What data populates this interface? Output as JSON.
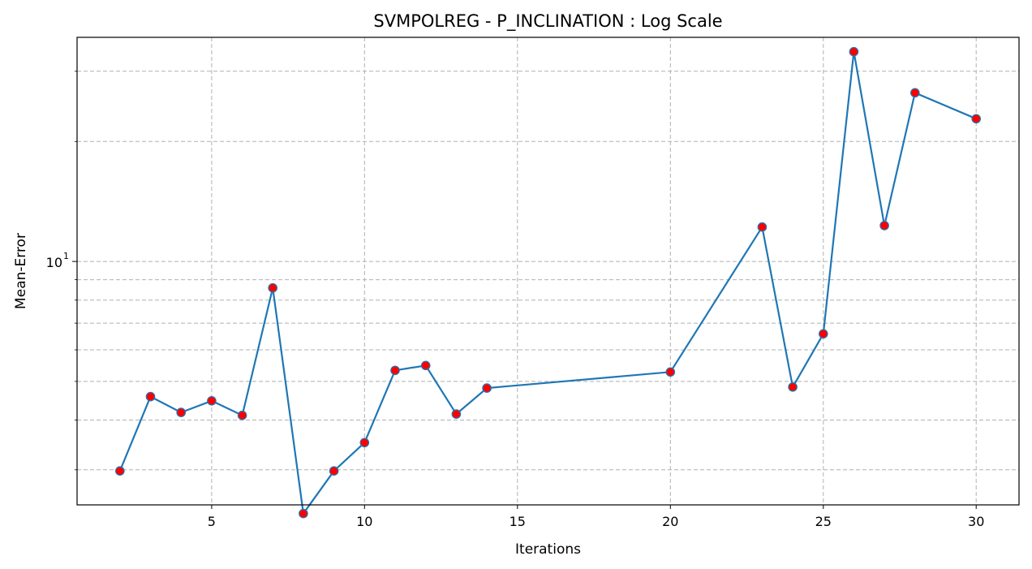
{
  "chart_data": {
    "type": "line",
    "title": "SVMPOLREG - P_INCLINATION : Log Scale",
    "xlabel": "Iterations",
    "ylabel": "Mean-Error",
    "yscale": "log",
    "xlim": [
      0.6,
      31.4
    ],
    "ylim": [
      2.45,
      36.5
    ],
    "grid": true,
    "x_ticks": [
      5,
      10,
      15,
      20,
      25,
      30
    ],
    "y_major_ticks": [
      {
        "value": 10,
        "base": "10",
        "exp": "1"
      }
    ],
    "y_minor_ticks": [
      3,
      4,
      5,
      6,
      7,
      8,
      9,
      20,
      30
    ],
    "line_color": "#1f77b4",
    "marker_color": "#ff0000",
    "series": [
      {
        "x": [
          2,
          3,
          4,
          5,
          6,
          7,
          8,
          9,
          10,
          11,
          12,
          13,
          14,
          20,
          23,
          24,
          25,
          26,
          27,
          28,
          30
        ],
        "y": [
          2.98,
          4.58,
          4.18,
          4.47,
          4.11,
          8.58,
          2.33,
          2.98,
          3.51,
          5.33,
          5.48,
          4.14,
          4.81,
          5.28,
          12.2,
          4.84,
          6.58,
          33.6,
          12.3,
          26.5,
          22.8
        ]
      }
    ]
  }
}
